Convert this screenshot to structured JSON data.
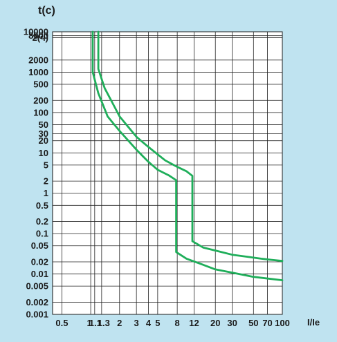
{
  "chart_data": {
    "type": "line",
    "title": "",
    "ylabel": "t(c)",
    "xlabel": "I/Ie",
    "x_scale": "log",
    "y_scale": "log",
    "xlim": [
      0.4,
      100
    ],
    "ylim": [
      0.001,
      10000
    ],
    "grid": true,
    "line_color": "#1fae5a",
    "x_ticks": [
      {
        "value": 0.5,
        "label": "0.5"
      },
      {
        "value": 1,
        "label": "1"
      },
      {
        "value": 1.1,
        "label": "1.1"
      },
      {
        "value": 1.3,
        "label": "1.3"
      },
      {
        "value": 2,
        "label": "2"
      },
      {
        "value": 3,
        "label": "3"
      },
      {
        "value": 4,
        "label": "4"
      },
      {
        "value": 5,
        "label": "5"
      },
      {
        "value": 8,
        "label": "8"
      },
      {
        "value": 12,
        "label": "12"
      },
      {
        "value": 20,
        "label": "20"
      },
      {
        "value": 30,
        "label": "30"
      },
      {
        "value": 50,
        "label": "50"
      },
      {
        "value": 70,
        "label": "70"
      },
      {
        "value": 100,
        "label": "100"
      }
    ],
    "y_ticks": [
      {
        "value": 10000,
        "label": "10000"
      },
      {
        "value": 8000,
        "label": "8000"
      },
      {
        "value": 7200,
        "label": "2(ч)"
      },
      {
        "value": 2000,
        "label": "2000"
      },
      {
        "value": 1000,
        "label": "1000"
      },
      {
        "value": 500,
        "label": "500"
      },
      {
        "value": 200,
        "label": "200"
      },
      {
        "value": 100,
        "label": "100"
      },
      {
        "value": 50,
        "label": "50"
      },
      {
        "value": 30,
        "label": "30"
      },
      {
        "value": 20,
        "label": "20"
      },
      {
        "value": 10,
        "label": "10"
      },
      {
        "value": 5,
        "label": "5"
      },
      {
        "value": 2,
        "label": "2"
      },
      {
        "value": 1,
        "label": "1"
      },
      {
        "value": 0.5,
        "label": "0.5"
      },
      {
        "value": 0.2,
        "label": "0.2"
      },
      {
        "value": 0.1,
        "label": "0.1"
      },
      {
        "value": 0.05,
        "label": "0.05"
      },
      {
        "value": 0.02,
        "label": "0.02"
      },
      {
        "value": 0.01,
        "label": "0.01"
      },
      {
        "value": 0.005,
        "label": "0.005"
      },
      {
        "value": 0.002,
        "label": "0.002"
      },
      {
        "value": 0.001,
        "label": "0.001"
      }
    ],
    "series": [
      {
        "points": [
          [
            1.05,
            10000
          ],
          [
            1.05,
            1000
          ],
          [
            1.2,
            300
          ],
          [
            1.5,
            80
          ],
          [
            2,
            35
          ],
          [
            3,
            12
          ],
          [
            4,
            6
          ],
          [
            5,
            3.8
          ],
          [
            6.5,
            2.8
          ],
          [
            7.8,
            2.1
          ],
          [
            7.8,
            0.035
          ],
          [
            10,
            0.024
          ],
          [
            20,
            0.013
          ],
          [
            50,
            0.0085
          ],
          [
            100,
            0.007
          ]
        ]
      },
      {
        "points": [
          [
            1.2,
            10000
          ],
          [
            1.2,
            1200
          ],
          [
            1.4,
            400
          ],
          [
            2,
            80
          ],
          [
            3,
            25
          ],
          [
            4,
            14
          ],
          [
            6,
            6.5
          ],
          [
            8,
            4.5
          ],
          [
            10,
            3.5
          ],
          [
            11.5,
            2.7
          ],
          [
            11.5,
            0.065
          ],
          [
            15,
            0.045
          ],
          [
            30,
            0.03
          ],
          [
            60,
            0.024
          ],
          [
            100,
            0.021
          ]
        ]
      }
    ]
  }
}
